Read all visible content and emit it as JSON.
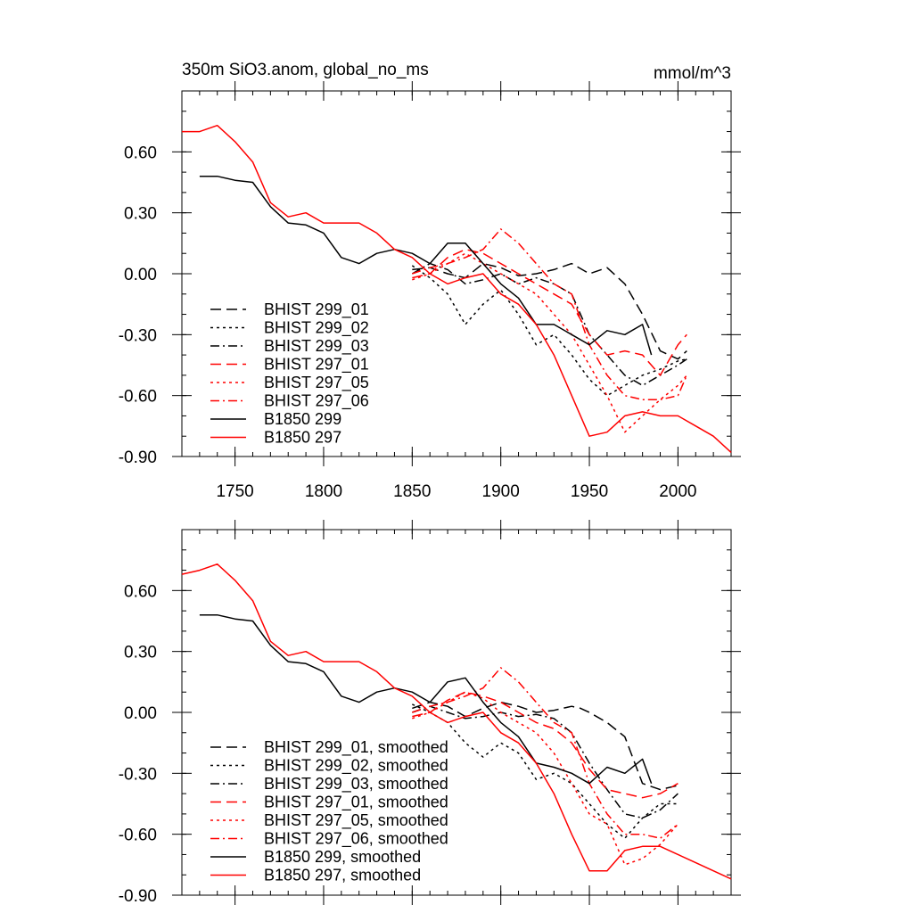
{
  "chart_data": [
    {
      "type": "line",
      "title": "350m SiO3.anom, global_no_ms",
      "units": "mmol/m^3",
      "xlim": [
        1720,
        2030
      ],
      "ylim": [
        -0.9,
        0.9
      ],
      "xticks": [
        1750,
        1800,
        1850,
        1900,
        1950,
        2000
      ],
      "yticks": [
        -0.9,
        -0.6,
        -0.3,
        0.0,
        0.3,
        0.6
      ],
      "ytick_labels": [
        "-0.90",
        "-0.60",
        "-0.30",
        "0.00",
        "0.30",
        "0.60"
      ],
      "legend_position": "bottom-left",
      "series": [
        {
          "name": "BHIST 299_01",
          "color": "#000000",
          "dash": "dashed",
          "x": [
            1850,
            1860,
            1870,
            1880,
            1890,
            1900,
            1910,
            1920,
            1930,
            1940,
            1950,
            1960,
            1970,
            1980,
            1990,
            2000,
            2005
          ],
          "y": [
            0.02,
            0.03,
            0.0,
            -0.02,
            0.05,
            0.03,
            -0.01,
            0.0,
            0.02,
            0.05,
            0.0,
            0.03,
            -0.05,
            -0.2,
            -0.38,
            -0.42,
            -0.38
          ]
        },
        {
          "name": "BHIST 299_02",
          "color": "#000000",
          "dash": "dotted",
          "x": [
            1850,
            1860,
            1870,
            1880,
            1890,
            1900,
            1910,
            1920,
            1930,
            1940,
            1950,
            1960,
            1970,
            1980,
            1990,
            2000,
            2005
          ],
          "y": [
            0.04,
            -0.02,
            -0.1,
            -0.25,
            -0.15,
            -0.08,
            -0.2,
            -0.35,
            -0.3,
            -0.4,
            -0.52,
            -0.6,
            -0.55,
            -0.5,
            -0.47,
            -0.43,
            -0.42
          ]
        },
        {
          "name": "BHIST 299_03",
          "color": "#000000",
          "dash": "dashdot",
          "x": [
            1850,
            1860,
            1870,
            1880,
            1890,
            1900,
            1910,
            1920,
            1930,
            1940,
            1950,
            1960,
            1970,
            1980,
            1990,
            2000,
            2005
          ],
          "y": [
            0.0,
            0.05,
            0.02,
            -0.05,
            -0.03,
            0.0,
            -0.05,
            -0.02,
            -0.05,
            -0.1,
            -0.3,
            -0.4,
            -0.5,
            -0.55,
            -0.5,
            -0.45,
            -0.42
          ]
        },
        {
          "name": "BHIST 297_01",
          "color": "#ff0000",
          "dash": "dashed",
          "x": [
            1850,
            1860,
            1870,
            1880,
            1890,
            1900,
            1910,
            1920,
            1930,
            1940,
            1950,
            1960,
            1970,
            1980,
            1990,
            2000,
            2005
          ],
          "y": [
            -0.02,
            0.0,
            0.08,
            0.12,
            0.1,
            0.05,
            0.0,
            -0.05,
            -0.1,
            -0.15,
            -0.3,
            -0.4,
            -0.38,
            -0.4,
            -0.5,
            -0.35,
            -0.3
          ]
        },
        {
          "name": "BHIST 297_05",
          "color": "#ff0000",
          "dash": "dotted",
          "x": [
            1850,
            1860,
            1870,
            1880,
            1890,
            1900,
            1910,
            1920,
            1930,
            1940,
            1950,
            1960,
            1970,
            1980,
            1990,
            2000,
            2005
          ],
          "y": [
            -0.03,
            0.0,
            0.05,
            0.1,
            0.05,
            0.0,
            -0.05,
            -0.1,
            -0.2,
            -0.3,
            -0.45,
            -0.6,
            -0.78,
            -0.7,
            -0.62,
            -0.55,
            -0.5
          ]
        },
        {
          "name": "BHIST 297_06",
          "color": "#ff0000",
          "dash": "dashdot",
          "x": [
            1850,
            1860,
            1870,
            1880,
            1890,
            1900,
            1910,
            1920,
            1930,
            1940,
            1950,
            1960,
            1970,
            1980,
            1990,
            2000,
            2005
          ],
          "y": [
            0.0,
            0.03,
            0.05,
            0.08,
            0.12,
            0.22,
            0.15,
            0.05,
            -0.05,
            -0.1,
            -0.35,
            -0.5,
            -0.6,
            -0.62,
            -0.62,
            -0.6,
            -0.5
          ]
        },
        {
          "name": "B1850 299",
          "color": "#000000",
          "dash": "solid",
          "x": [
            1730,
            1740,
            1750,
            1760,
            1770,
            1780,
            1790,
            1800,
            1810,
            1820,
            1830,
            1840,
            1850,
            1860,
            1870,
            1880,
            1890,
            1900,
            1910,
            1920,
            1930,
            1940,
            1950,
            1960,
            1970,
            1980,
            1985
          ],
          "y": [
            0.48,
            0.48,
            0.46,
            0.45,
            0.33,
            0.25,
            0.24,
            0.2,
            0.08,
            0.05,
            0.1,
            0.12,
            0.1,
            0.05,
            0.15,
            0.15,
            0.05,
            -0.05,
            -0.12,
            -0.25,
            -0.25,
            -0.3,
            -0.35,
            -0.28,
            -0.3,
            -0.25,
            -0.4
          ]
        },
        {
          "name": "B1850 297",
          "color": "#ff0000",
          "dash": "solid",
          "x": [
            1720,
            1730,
            1740,
            1750,
            1760,
            1770,
            1780,
            1790,
            1800,
            1810,
            1820,
            1830,
            1840,
            1850,
            1860,
            1870,
            1880,
            1890,
            1900,
            1910,
            1920,
            1930,
            1940,
            1950,
            1960,
            1970,
            1980,
            1990,
            2000,
            2010,
            2020,
            2030
          ],
          "y": [
            0.7,
            0.7,
            0.73,
            0.65,
            0.55,
            0.35,
            0.28,
            0.3,
            0.25,
            0.25,
            0.25,
            0.2,
            0.12,
            0.08,
            0.0,
            -0.05,
            -0.02,
            0.0,
            -0.1,
            -0.15,
            -0.25,
            -0.4,
            -0.6,
            -0.8,
            -0.78,
            -0.7,
            -0.68,
            -0.7,
            -0.7,
            -0.75,
            -0.8,
            -0.88
          ]
        }
      ]
    },
    {
      "type": "line",
      "xlim": [
        1720,
        2030
      ],
      "ylim": [
        -0.9,
        0.9
      ],
      "xticks": [
        1750,
        1800,
        1850,
        1900,
        1950,
        2000
      ],
      "yticks": [
        -0.9,
        -0.6,
        -0.3,
        0.0,
        0.3,
        0.6
      ],
      "ytick_labels": [
        "-0.90",
        "-0.60",
        "-0.30",
        "0.00",
        "0.30",
        "0.60"
      ],
      "legend_position": "bottom-left",
      "series": [
        {
          "name": "BHIST 299_01, smoothed",
          "color": "#000000",
          "dash": "dashed",
          "x": [
            1850,
            1860,
            1870,
            1880,
            1890,
            1900,
            1910,
            1920,
            1930,
            1935,
            1940,
            1945,
            1950,
            1960,
            1970,
            1980,
            1990,
            2000
          ],
          "y": [
            0.02,
            0.05,
            0.03,
            -0.02,
            0.02,
            0.05,
            0.03,
            0.0,
            0.01,
            0.02,
            0.03,
            0.02,
            0.0,
            -0.05,
            -0.12,
            -0.35,
            -0.38,
            -0.36
          ]
        },
        {
          "name": "BHIST 299_02, smoothed",
          "color": "#000000",
          "dash": "dotted",
          "x": [
            1850,
            1860,
            1870,
            1880,
            1890,
            1900,
            1910,
            1920,
            1930,
            1940,
            1950,
            1960,
            1970,
            1980,
            1990,
            2000
          ],
          "y": [
            0.04,
            0.0,
            -0.05,
            -0.15,
            -0.22,
            -0.15,
            -0.2,
            -0.33,
            -0.3,
            -0.35,
            -0.45,
            -0.55,
            -0.62,
            -0.52,
            -0.45,
            -0.45
          ]
        },
        {
          "name": "BHIST 299_03, smoothed",
          "color": "#000000",
          "dash": "dashdot",
          "x": [
            1850,
            1860,
            1870,
            1880,
            1890,
            1900,
            1910,
            1920,
            1930,
            1940,
            1950,
            1960,
            1970,
            1980,
            1990,
            2000
          ],
          "y": [
            0.0,
            0.03,
            0.0,
            -0.03,
            -0.02,
            0.0,
            -0.02,
            -0.01,
            -0.03,
            -0.1,
            -0.25,
            -0.38,
            -0.5,
            -0.52,
            -0.48,
            -0.4
          ]
        },
        {
          "name": "BHIST 297_01, smoothed",
          "color": "#ff0000",
          "dash": "dashed",
          "x": [
            1850,
            1860,
            1870,
            1880,
            1890,
            1900,
            1910,
            1920,
            1930,
            1940,
            1950,
            1960,
            1970,
            1980,
            1990,
            2000
          ],
          "y": [
            -0.02,
            0.0,
            0.06,
            0.1,
            0.08,
            0.05,
            0.0,
            -0.05,
            -0.08,
            -0.15,
            -0.28,
            -0.38,
            -0.4,
            -0.42,
            -0.4,
            -0.35
          ]
        },
        {
          "name": "BHIST 297_05, smoothed",
          "color": "#ff0000",
          "dash": "dotted",
          "x": [
            1850,
            1860,
            1870,
            1880,
            1890,
            1900,
            1910,
            1920,
            1930,
            1940,
            1950,
            1960,
            1970,
            1980,
            1990,
            2000
          ],
          "y": [
            -0.03,
            0.0,
            0.05,
            0.1,
            0.07,
            0.0,
            -0.05,
            -0.1,
            -0.2,
            -0.35,
            -0.5,
            -0.55,
            -0.75,
            -0.72,
            -0.65,
            -0.55
          ]
        },
        {
          "name": "BHIST 297_06, smoothed",
          "color": "#ff0000",
          "dash": "dashdot",
          "x": [
            1850,
            1860,
            1870,
            1880,
            1890,
            1900,
            1910,
            1920,
            1930,
            1940,
            1950,
            1960,
            1970,
            1980,
            1990,
            2000
          ],
          "y": [
            0.0,
            0.03,
            0.05,
            0.08,
            0.12,
            0.22,
            0.15,
            0.05,
            -0.05,
            -0.1,
            -0.35,
            -0.5,
            -0.6,
            -0.6,
            -0.62,
            -0.55
          ]
        },
        {
          "name": "B1850 299, smoothed",
          "color": "#000000",
          "dash": "solid",
          "x": [
            1730,
            1740,
            1750,
            1760,
            1770,
            1780,
            1790,
            1800,
            1810,
            1820,
            1830,
            1840,
            1850,
            1860,
            1870,
            1880,
            1890,
            1900,
            1910,
            1920,
            1930,
            1940,
            1950,
            1960,
            1970,
            1980,
            1985
          ],
          "y": [
            0.48,
            0.48,
            0.46,
            0.45,
            0.33,
            0.25,
            0.24,
            0.2,
            0.08,
            0.05,
            0.1,
            0.12,
            0.1,
            0.05,
            0.15,
            0.17,
            0.05,
            -0.05,
            -0.12,
            -0.25,
            -0.27,
            -0.3,
            -0.35,
            -0.27,
            -0.3,
            -0.23,
            -0.35
          ]
        },
        {
          "name": "B1850 297, smoothed",
          "color": "#ff0000",
          "dash": "solid",
          "x": [
            1720,
            1730,
            1740,
            1750,
            1760,
            1770,
            1780,
            1790,
            1800,
            1810,
            1820,
            1830,
            1840,
            1850,
            1860,
            1870,
            1880,
            1890,
            1900,
            1910,
            1920,
            1930,
            1940,
            1950,
            1960,
            1970,
            1980,
            1990,
            2000,
            2010,
            2020,
            2030
          ],
          "y": [
            0.68,
            0.7,
            0.73,
            0.65,
            0.55,
            0.35,
            0.28,
            0.3,
            0.25,
            0.25,
            0.25,
            0.2,
            0.12,
            0.08,
            0.0,
            -0.05,
            -0.02,
            0.0,
            -0.1,
            -0.15,
            -0.25,
            -0.4,
            -0.6,
            -0.78,
            -0.78,
            -0.68,
            -0.66,
            -0.66,
            -0.7,
            -0.74,
            -0.78,
            -0.82
          ]
        }
      ]
    }
  ]
}
